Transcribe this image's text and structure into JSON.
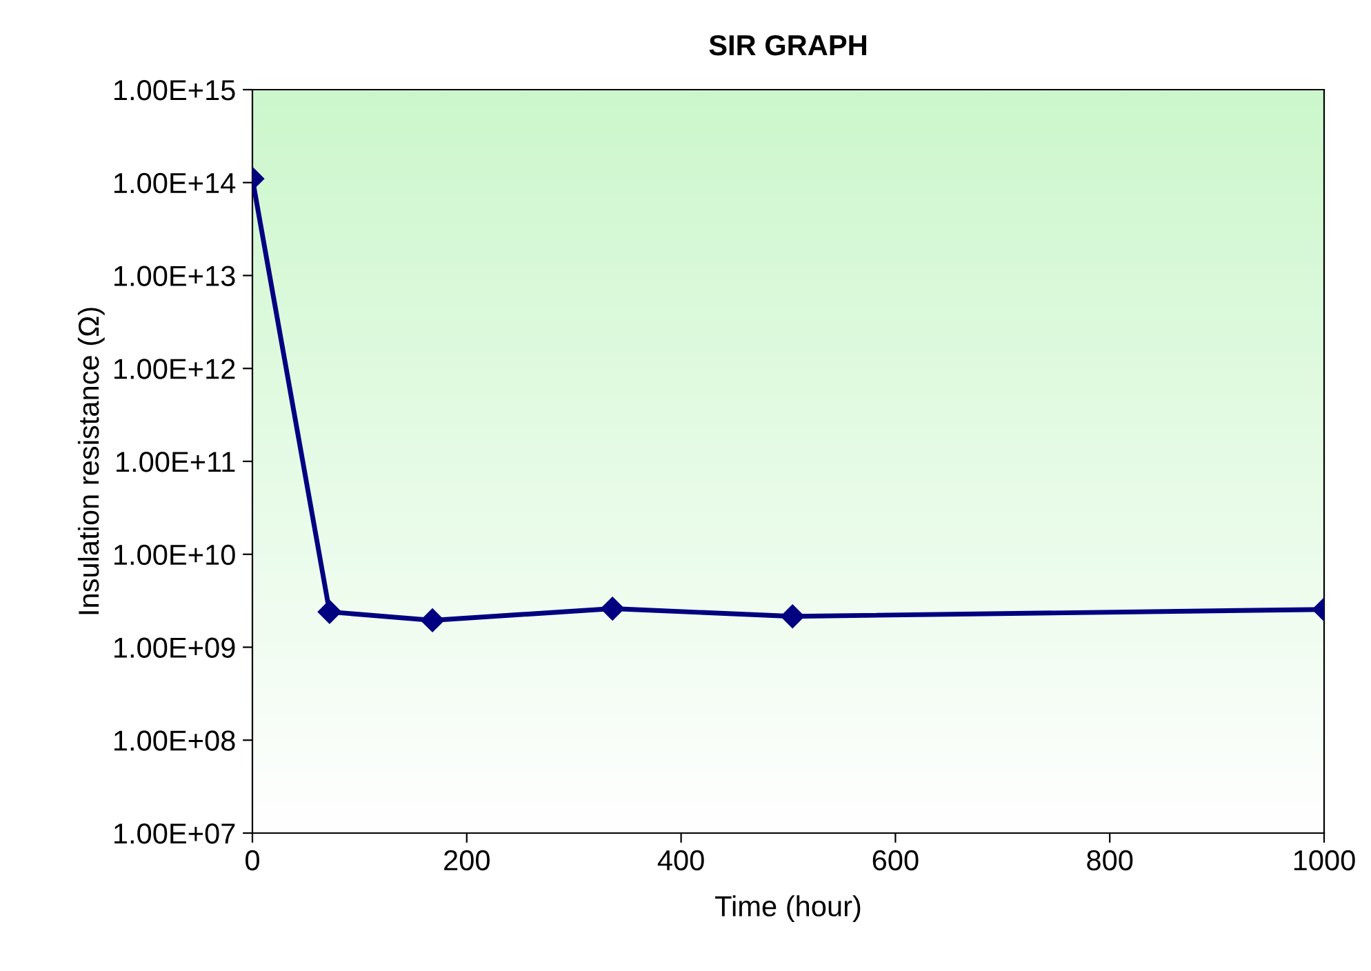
{
  "chart_data": {
    "type": "line",
    "title": "SIR GRAPH",
    "xlabel": "Time (hour)",
    "ylabel": "Insulation resistance (Ω)",
    "x": [
      0,
      72,
      168,
      336,
      504,
      1000
    ],
    "series": [
      {
        "color": "#000080",
        "values": [
          110000000000000.0,
          2400000000.0,
          1950000000.0,
          2600000000.0,
          2150000000.0,
          2550000000.0
        ]
      }
    ],
    "log": "y",
    "marker": "diamond",
    "line_style": "solid",
    "grid": false,
    "legend": false,
    "xlim": [
      0,
      1000
    ],
    "xticks": [
      0,
      200,
      400,
      600,
      800,
      1000
    ],
    "ylim": [
      10000000.0,
      1000000000000000.0
    ],
    "yticks": [
      {
        "value": 10000000.0,
        "label": "1.00E+07"
      },
      {
        "value": 100000000.0,
        "label": "1.00E+08"
      },
      {
        "value": 1000000000.0,
        "label": "1.00E+09"
      },
      {
        "value": 10000000000.0,
        "label": "1.00E+10"
      },
      {
        "value": 100000000000.0,
        "label": "1.00E+11"
      },
      {
        "value": 1000000000000.0,
        "label": "1.00E+12"
      },
      {
        "value": 10000000000000.0,
        "label": "1.00E+13"
      },
      {
        "value": 100000000000000.0,
        "label": "1.00E+14"
      },
      {
        "value": 1000000000000000.0,
        "label": "1.00E+15"
      }
    ]
  }
}
